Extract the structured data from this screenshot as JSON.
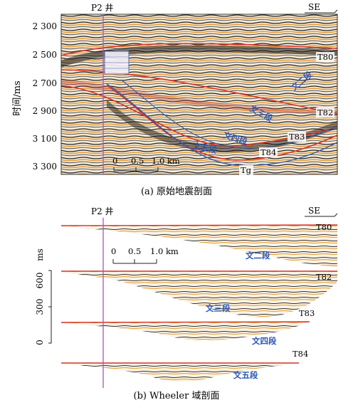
{
  "panel_a": {
    "well": "P2 井",
    "direction": "SE",
    "y_axis_title": "时间/ms",
    "y_ticks": [
      "2 300",
      "2 500",
      "2 700",
      "2 900",
      "3 100",
      "3 300"
    ],
    "horizons": [
      "T80",
      "T82",
      "T83",
      "T84",
      "Tg"
    ],
    "units": [
      "文二段",
      "文三段",
      "文四段",
      "文五段"
    ],
    "scale": [
      "0",
      "0.5",
      "1.0 km"
    ],
    "caption": "(a) 原始地震剖面"
  },
  "panel_b": {
    "well": "P2 井",
    "direction": "SE",
    "y_unit": "ms",
    "y_ticks": [
      "600",
      "300",
      "0"
    ],
    "horizons": [
      "T80",
      "T82",
      "T83",
      "T84"
    ],
    "units": [
      "文二段",
      "文三段",
      "文四段",
      "文五段"
    ],
    "scale": [
      "0",
      "0.5",
      "1.0 km"
    ],
    "caption": "(b) Wheeler 域剖面"
  },
  "colors": {
    "horizon": "#d8322a",
    "unit_label": "#2a56b8",
    "well_line": "#b04fc0",
    "seismic_dark": "#1a1a1a",
    "seismic_warm": "#e7a84a"
  }
}
